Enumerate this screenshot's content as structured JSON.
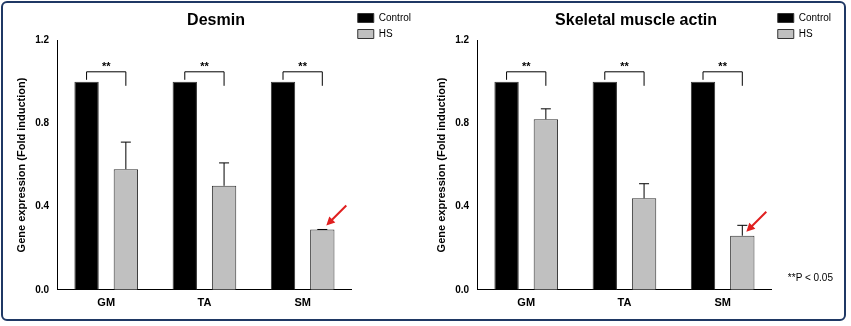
{
  "chart_data": [
    {
      "type": "bar",
      "title": "Desmin",
      "y_label": "Gene expression (Fold induction)",
      "categories": [
        "GM",
        "TA",
        "SM"
      ],
      "series": [
        {
          "name": "Control",
          "color": "#000000",
          "values": [
            1.0,
            1.0,
            1.0
          ]
        },
        {
          "name": "HS",
          "color": "#c0c0c0",
          "values": [
            0.58,
            0.5,
            0.29
          ],
          "errors": [
            0.13,
            0.11,
            0.0
          ]
        }
      ],
      "significance": [
        "**",
        "**",
        "**"
      ],
      "ylim": [
        0,
        1.2
      ],
      "yticks": [
        {
          "value": 0,
          "label": "0.0"
        },
        0.4,
        0.8,
        1.2
      ],
      "grid": false,
      "legend": "upper right"
    },
    {
      "type": "bar",
      "title": "Skeletal muscle actin",
      "y_label": "Gene expression (Fold induction)",
      "categories": [
        "GM",
        "TA",
        "SM"
      ],
      "series": [
        {
          "name": "Control",
          "color": "#000000",
          "values": [
            1.0,
            1.0,
            1.0
          ]
        },
        {
          "name": "HS",
          "color": "#c0c0c0",
          "values": [
            0.82,
            0.44,
            0.26
          ],
          "errors": [
            0.05,
            0.07,
            0.05
          ]
        }
      ],
      "significance": [
        "**",
        "**",
        "**"
      ],
      "footnote": "**P < 0.05",
      "ylim": [
        0,
        1.2
      ],
      "yticks": [
        {
          "value": 0,
          "label": "0.0"
        },
        0.4,
        0.8,
        1.2
      ],
      "grid": false,
      "legend": "upper right"
    }
  ]
}
